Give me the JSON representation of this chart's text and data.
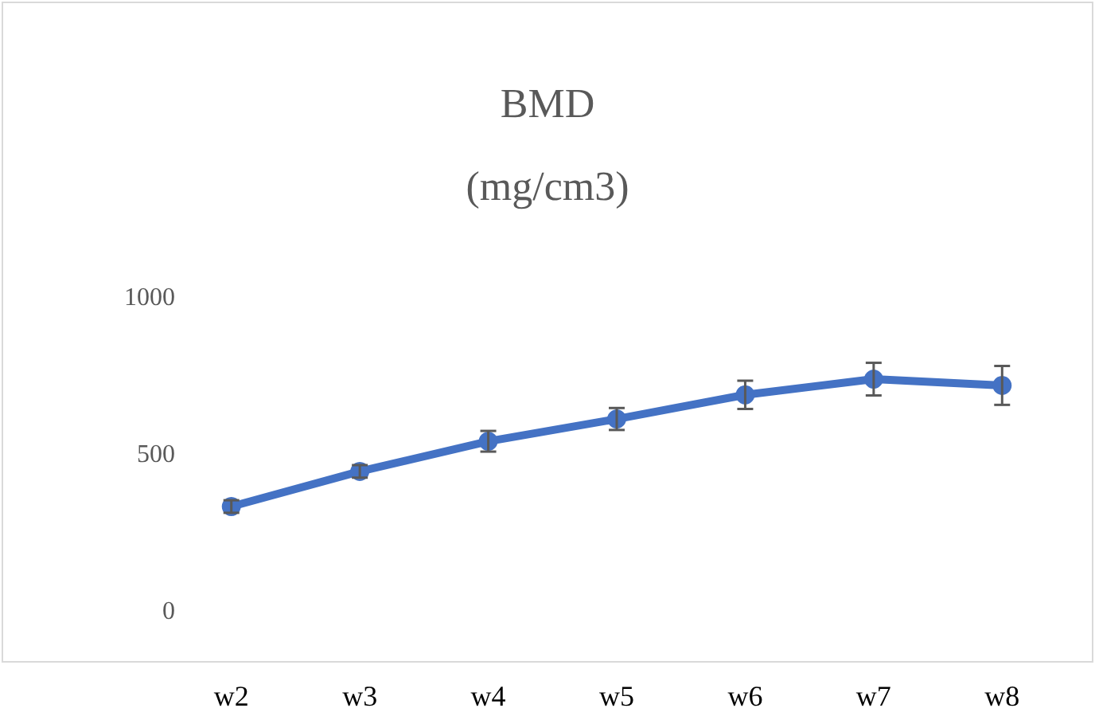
{
  "chart_data": {
    "type": "line",
    "title": "BMD\n(mg/cm3)",
    "categories": [
      "w2",
      "w3",
      "w4",
      "w5",
      "w6",
      "w7",
      "w8"
    ],
    "series": [
      {
        "color": "#4472c4",
        "values": [
          335,
          447,
          543,
          614,
          691,
          741,
          721
        ],
        "errors": [
          20,
          20,
          33,
          35,
          45,
          52,
          62
        ]
      }
    ],
    "ylim": [
      0,
      1000
    ],
    "yticks": [
      0,
      500,
      1000
    ],
    "grid": false,
    "marker": "circle",
    "line_style": "solid"
  }
}
